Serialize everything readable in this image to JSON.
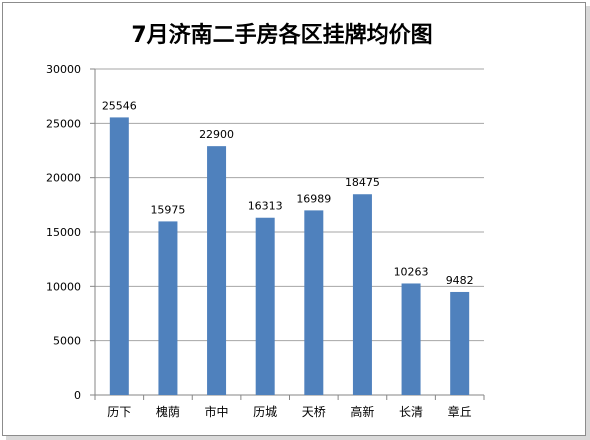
{
  "chart_data": {
    "type": "bar",
    "title": "7月济南二手房各区挂牌均价图",
    "xlabel": "",
    "ylabel": "",
    "categories": [
      "历下",
      "槐荫",
      "市中",
      "历城",
      "天桥",
      "高新",
      "长清",
      "章丘"
    ],
    "values": [
      25546,
      15975,
      22900,
      16313,
      16989,
      18475,
      10263,
      9482
    ],
    "data_labels": [
      "25546",
      "15975",
      "22900",
      "16313",
      "16989",
      "18475",
      "10263",
      "9482"
    ],
    "ylim": [
      0,
      30000
    ],
    "yticks": [
      0,
      5000,
      10000,
      15000,
      20000,
      25000,
      30000
    ],
    "ytick_labels": [
      "0",
      "5000",
      "10000",
      "15000",
      "20000",
      "25000",
      "30000"
    ],
    "grid": true,
    "legend": "none",
    "bar_color": "#4f81bd",
    "grid_color": "#a6a6a6"
  }
}
